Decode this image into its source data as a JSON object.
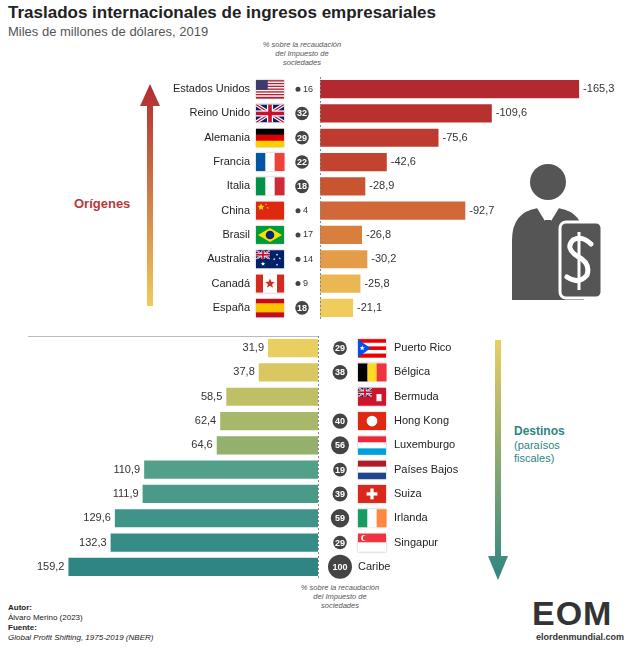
{
  "chart_data": [
    {
      "type": "bar",
      "title": "Traslados internacionales de ingresos empresariales",
      "subtitle": "Miles de millones de dólares, 2019",
      "group_label": "Orígenes",
      "orientation": "horizontal",
      "categories": [
        "Estados Unidos",
        "Reino Unido",
        "Alemania",
        "Francia",
        "Italia",
        "China",
        "Brasil",
        "Australia",
        "Canadá",
        "España"
      ],
      "values": [
        -165.3,
        -109.6,
        -75.6,
        -42.6,
        -28.9,
        -92.7,
        -26.8,
        -30.2,
        -25.8,
        -21.1
      ],
      "value_labels": [
        "-165,3",
        "-109,6",
        "-75,6",
        "-42,6",
        "-28,9",
        "-92,7",
        "-26,8",
        "-30,2",
        "-25,8",
        "-21,1"
      ],
      "colors": [
        "#b22a30",
        "#b8312f",
        "#bd3b2f",
        "#c2442f",
        "#c85530",
        "#d0683a",
        "#d97f3e",
        "#e39c47",
        "#eab753",
        "#f0cc5d"
      ],
      "tax_share_title": "% sobre la recaudación del Impuesto de sociedades",
      "tax_share": [
        16,
        32,
        29,
        22,
        18,
        4,
        17,
        14,
        9,
        18
      ],
      "xlim": [
        0,
        -185
      ],
      "grid": false,
      "data_labels": true,
      "tick_labels": "y"
    },
    {
      "type": "bar",
      "group_label": "Destinos",
      "group_sublabel": "(paraísos fiscales)",
      "orientation": "horizontal",
      "categories": [
        "Puerto Rico",
        "Bélgica",
        "Bermuda",
        "Hong Kong",
        "Luxemburgo",
        "Países Bajos",
        "Suiza",
        "Irlanda",
        "Singapur",
        "Caribe"
      ],
      "values": [
        31.9,
        37.8,
        58.5,
        62.4,
        64.6,
        110.9,
        111.9,
        129.6,
        132.3,
        159.2
      ],
      "value_labels": [
        "31,9",
        "37,8",
        "58,5",
        "62,4",
        "64,6",
        "110,9",
        "111,9",
        "129,6",
        "132,3",
        "159,2"
      ],
      "colors": [
        "#e9cf60",
        "#d9c862",
        "#bfbf66",
        "#a8b86a",
        "#93b06c",
        "#53a08a",
        "#4a9a89",
        "#3f9388",
        "#368c86",
        "#2e8582"
      ],
      "tax_share_title": "% sobre la recaudación del Impuesto de sociedades",
      "tax_share": [
        29,
        38,
        null,
        40,
        56,
        19,
        39,
        59,
        29,
        100
      ],
      "xlim": [
        185,
        0
      ],
      "grid": false,
      "data_labels": true,
      "tick_labels": "y"
    }
  ],
  "footer": {
    "author_label": "Autor:",
    "author": "Álvaro Merino (2023)",
    "source_label": "Fuente:",
    "source": "Global Profit Shifting, 1975-2019 (NBER)",
    "logo": "EOM",
    "website": "elordenmundial.com"
  }
}
